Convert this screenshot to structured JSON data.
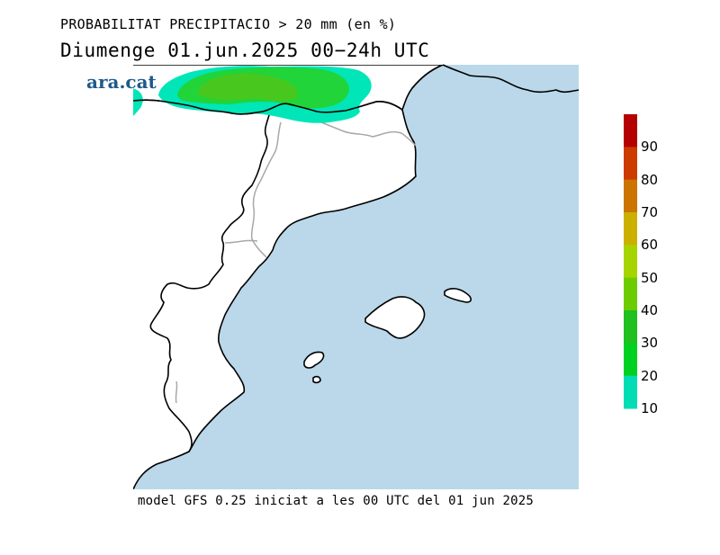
{
  "title": {
    "line1": "PROBABILITAT PRECIPITACIO > 20 mm (en %)",
    "line2": "Diumenge  01.jun.2025 00−24h UTC"
  },
  "logo_text": "ara.cat",
  "footer": "model GFS 0.25 iniciat a les 00 UTC del 01 jun 2025",
  "colorbar": {
    "labels": [
      "90",
      "80",
      "70",
      "60",
      "50",
      "40",
      "30",
      "20",
      "10"
    ],
    "colors": [
      "#b40000",
      "#cc3a00",
      "#cc7400",
      "#ccb000",
      "#a6d400",
      "#6ccc00",
      "#20c020",
      "#00d020",
      "#00dcb4"
    ]
  },
  "colors": {
    "sea": "#bad8ea",
    "land": "#ffffff",
    "coast": "#000000",
    "region_border": "#a8a8a8",
    "prob_10_20": "#00e6b8",
    "prob_20_30": "#20d43a",
    "prob_30_40": "#48c81e"
  }
}
